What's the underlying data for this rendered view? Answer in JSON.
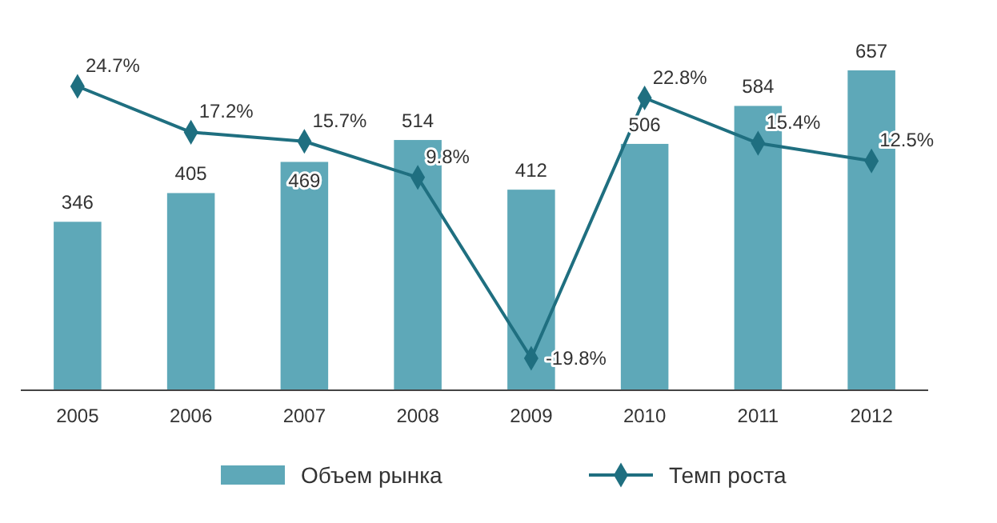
{
  "chart_data": {
    "type": "bar",
    "categories": [
      "2005",
      "2006",
      "2007",
      "2008",
      "2009",
      "2010",
      "2011",
      "2012"
    ],
    "series": [
      {
        "name": "Объем рынка",
        "color": "#5ea8b8",
        "values": [
          346,
          405,
          469,
          514,
          412,
          506,
          584,
          657
        ]
      },
      {
        "name": "Темп роста",
        "type": "line",
        "axis": "y2",
        "color": "#1f6f80",
        "values": [
          24.7,
          17.2,
          15.7,
          9.8,
          -19.8,
          22.8,
          15.4,
          12.5
        ],
        "value_labels": [
          "24.7%",
          "17.2%",
          "15.7%",
          "9.8%",
          "-19.8%",
          "22.8%",
          "15.4%",
          "12.5%"
        ]
      }
    ],
    "tick_labels": "x",
    "data_labels": true,
    "legend": "bottom",
    "marker": "diamond"
  }
}
